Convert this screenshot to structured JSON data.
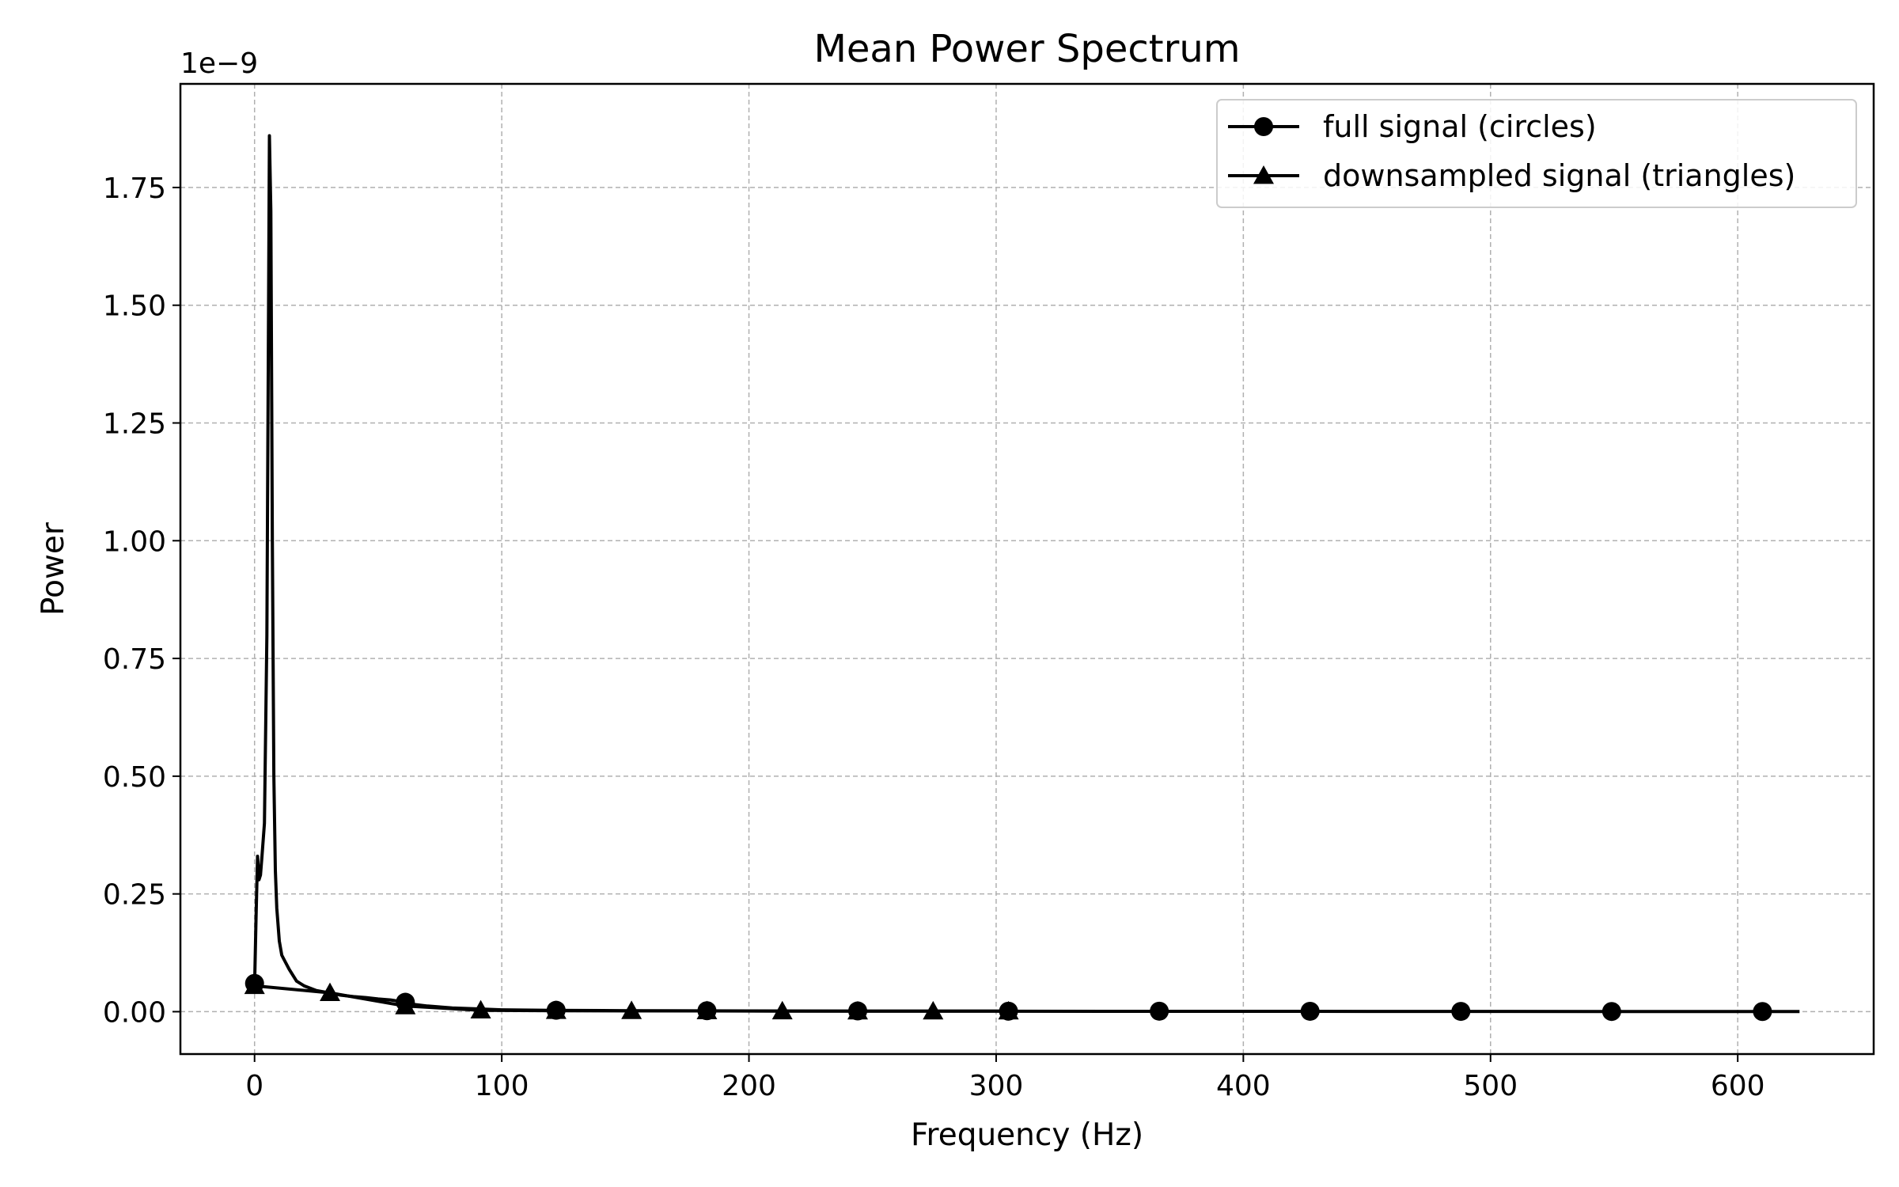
{
  "chart_data": {
    "type": "line",
    "title": "Mean Power Spectrum",
    "xlabel": "Frequency (Hz)",
    "ylabel": "Power",
    "y_offset_label": "1e−9",
    "xlim": [
      -30,
      655
    ],
    "ylim": [
      -0.09,
      1.97
    ],
    "grid": true,
    "legend_position": "top-right",
    "xticks": [
      0,
      100,
      200,
      300,
      400,
      500,
      600
    ],
    "xtick_labels": [
      "0",
      "100",
      "200",
      "300",
      "400",
      "500",
      "600"
    ],
    "yticks": [
      0,
      0.25,
      0.5,
      0.75,
      1.0,
      1.25,
      1.5,
      1.75
    ],
    "ytick_labels": [
      "0.00",
      "0.25",
      "0.50",
      "0.75",
      "1.00",
      "1.25",
      "1.50",
      "1.75"
    ],
    "series": [
      {
        "name": "full signal (circles)",
        "marker": "circle",
        "color": "#000000",
        "x": [
          0,
          0.6,
          1.2,
          1.8,
          2.4,
          3.0,
          4.0,
          5.0,
          6.0,
          6.6,
          7.2,
          7.8,
          8.4,
          9.0,
          10,
          11,
          12,
          14,
          17,
          20,
          25,
          30,
          35,
          40,
          45,
          50,
          55,
          61,
          65,
          70,
          80,
          90,
          100,
          120,
          150,
          200,
          250,
          300,
          350,
          400,
          450,
          500,
          550,
          600,
          625
        ],
        "y": [
          0.05,
          0.2,
          0.33,
          0.28,
          0.29,
          0.33,
          0.4,
          0.8,
          1.86,
          1.7,
          1.0,
          0.5,
          0.3,
          0.22,
          0.15,
          0.12,
          0.11,
          0.09,
          0.065,
          0.055,
          0.045,
          0.04,
          0.035,
          0.032,
          0.03,
          0.027,
          0.025,
          0.02,
          0.015,
          0.012,
          0.008,
          0.006,
          0.004,
          0.003,
          0.002,
          0.0015,
          0.001,
          0.001,
          0.0008,
          0.0007,
          0.0006,
          0.0005,
          0.0004,
          0.0003,
          0.0003
        ],
        "marker_x": [
          0,
          61,
          122,
          183,
          244,
          305,
          366,
          427,
          488,
          549,
          610
        ],
        "marker_y": [
          0.06,
          0.02,
          0.003,
          0.002,
          0.0015,
          0.001,
          0.001,
          0.0008,
          0.0006,
          0.0004,
          0.0003
        ]
      },
      {
        "name": "downsampled signal (triangles)",
        "marker": "triangle",
        "color": "#000000",
        "x": [
          0,
          30.5,
          61,
          91.5,
          122,
          152.5,
          183,
          213.5,
          244,
          274.5,
          305
        ],
        "y": [
          0.055,
          0.04,
          0.012,
          0.003,
          0.002,
          0.0018,
          0.0015,
          0.0012,
          0.001,
          0.001,
          0.001
        ],
        "marker_x": [
          0,
          30.5,
          61,
          91.5,
          122,
          152.5,
          183,
          213.5,
          244,
          274.5,
          305
        ],
        "marker_y": [
          0.055,
          0.04,
          0.012,
          0.003,
          0.002,
          0.0018,
          0.0015,
          0.0012,
          0.001,
          0.001,
          0.001
        ]
      }
    ]
  }
}
